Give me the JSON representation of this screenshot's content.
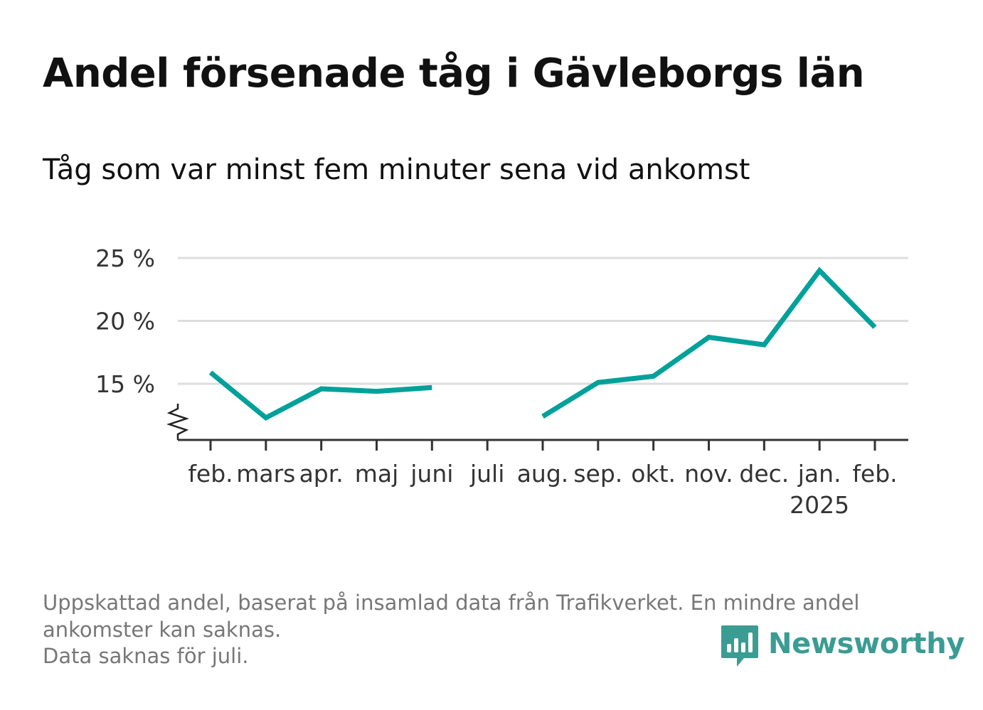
{
  "title": "Andel försenade tåg i Gävleborgs län",
  "subtitle": "Tåg som var minst fem minuter sena vid ankomst",
  "footnote": {
    "line1": "Uppskattad andel, baserat på insamlad data från Trafikverket. En mindre andel",
    "line2": "ankomster kan saknas.",
    "line3": "Data saknas för juli."
  },
  "brand": {
    "name": "Newsworthy",
    "icon": "newsworthy-chart-icon",
    "color": "#3a9c92"
  },
  "chart_data": {
    "type": "line",
    "categories": [
      "feb.",
      "mars",
      "apr.",
      "maj",
      "juni",
      "juli",
      "aug.",
      "sep.",
      "okt.",
      "nov.",
      "dec.",
      "jan.",
      "feb."
    ],
    "year_labels": [
      null,
      null,
      null,
      null,
      null,
      null,
      null,
      null,
      null,
      null,
      null,
      "2025",
      null
    ],
    "series": [
      {
        "values": [
          15.9,
          12.3,
          14.6,
          14.4,
          14.7,
          null,
          12.4,
          15.1,
          15.6,
          18.7,
          18.1,
          24.0,
          19.5
        ]
      }
    ],
    "yticks": [
      15,
      20,
      25
    ],
    "ytick_labels": [
      "15 %",
      "20 %",
      "25 %"
    ],
    "ylim": [
      11,
      25
    ],
    "axis_break": true,
    "grid": "horizontal",
    "line_color": "#00a19a"
  }
}
